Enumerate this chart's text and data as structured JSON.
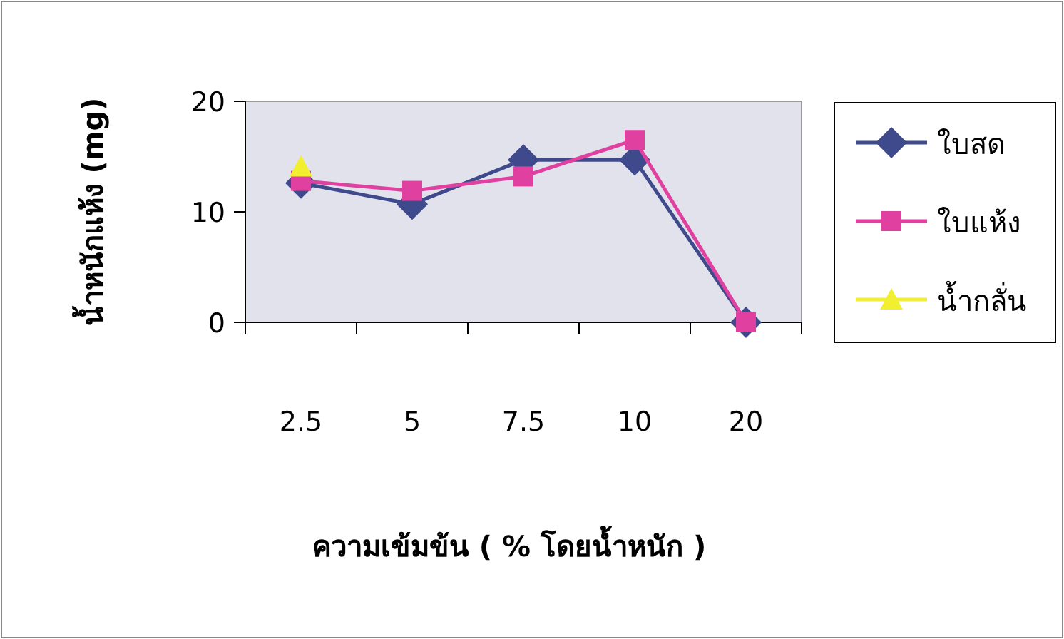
{
  "chart_data": {
    "type": "line",
    "xlabel": "ความเข้มข้น ( % โดยน้ำหนัก )",
    "ylabel": "น้ำหนักแห้ง (mg)",
    "categories": [
      "2.5",
      "5",
      "7.5",
      "10",
      "20"
    ],
    "ylim": [
      0,
      20
    ],
    "yticks": [
      0,
      10,
      20
    ],
    "grid": false,
    "legend": "right",
    "series": [
      {
        "name": "ใบสด",
        "color": "#3f4a8c",
        "marker": "diamond",
        "values": [
          12.6,
          10.7,
          14.7,
          14.7,
          0
        ]
      },
      {
        "name": "ใบแห้ง",
        "color": "#e040a0",
        "marker": "square",
        "values": [
          12.8,
          11.9,
          13.2,
          16.5,
          0
        ]
      },
      {
        "name": "น้ำกลั่น",
        "color": "#f2ee30",
        "marker": "triangle",
        "values": [
          14.1,
          null,
          null,
          null,
          null
        ]
      }
    ]
  }
}
